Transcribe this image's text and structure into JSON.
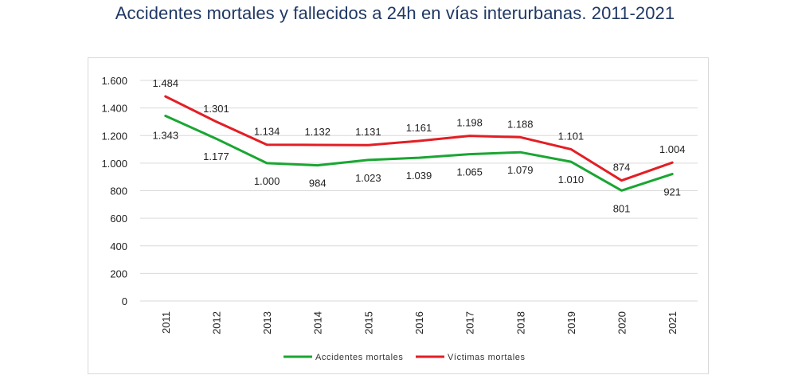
{
  "title": "Accidentes mortales y fallecidos a 24h en vías interurbanas. 2011-2021",
  "chart_data": {
    "type": "line",
    "title": "",
    "xlabel": "",
    "ylabel": "",
    "categories": [
      "2011",
      "2012",
      "2013",
      "2014",
      "2015",
      "2016",
      "2017",
      "2018",
      "2019",
      "2020",
      "2021"
    ],
    "ylim": [
      0,
      1600
    ],
    "yticks": [
      0,
      200,
      400,
      600,
      800,
      1000,
      1200,
      1400,
      1600
    ],
    "ytick_labels": [
      "0",
      "200",
      "400",
      "600",
      "800",
      "1.000",
      "1.200",
      "1.400",
      "1.600"
    ],
    "grid": true,
    "legend": "bottom",
    "series": [
      {
        "name": "Accidentes mortales",
        "color": "#1aa632",
        "values": [
          1343,
          1177,
          1000,
          984,
          1023,
          1039,
          1065,
          1079,
          1010,
          801,
          921
        ],
        "labels": [
          "1.343",
          "1.177",
          "1.000",
          "984",
          "1.023",
          "1.039",
          "1.065",
          "1.079",
          "1.010",
          "801",
          "921"
        ]
      },
      {
        "name": "Víctimas mortales",
        "color": "#e31e24",
        "values": [
          1484,
          1301,
          1134,
          1132,
          1131,
          1161,
          1198,
          1188,
          1101,
          874,
          1004
        ],
        "labels": [
          "1.484",
          "1.301",
          "1.134",
          "1.132",
          "1.131",
          "1.161",
          "1.198",
          "1.188",
          "1.101",
          "874",
          "1.004"
        ]
      }
    ]
  }
}
